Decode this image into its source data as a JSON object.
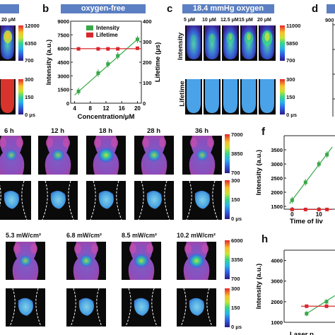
{
  "panels": {
    "a": {
      "conc_label": "20 μM",
      "cbar_int": [
        "12000",
        "6350",
        "700"
      ],
      "cbar_life": [
        "300",
        "150",
        "0 μs"
      ]
    },
    "b": {
      "label": "b",
      "title": "oxygen-free"
    },
    "c": {
      "label": "c",
      "title": "18.4 mmHg oxygen",
      "concentrations": [
        "5 μM",
        "10 μM",
        "12.5 μM",
        "15 μM",
        "20 μM"
      ],
      "row_labels": [
        "Intensity",
        "Lifetime"
      ],
      "cbar_int": [
        "11000",
        "5850",
        "700"
      ],
      "cbar_life": [
        "300",
        "150",
        "0 μs"
      ]
    },
    "d": {
      "label": "d",
      "partial_tick": "900"
    },
    "e": {
      "times": [
        "6 h",
        "12 h",
        "18 h",
        "28 h",
        "36 h"
      ],
      "cbar_int": [
        "7000",
        "3850",
        "700"
      ],
      "cbar_life": [
        "300",
        "150",
        "0 μs"
      ]
    },
    "f": {
      "label": "f"
    },
    "g": {
      "powers": [
        "5.3 mW/cm²",
        "6.8 mW/cm²",
        "8.5 mW/cm²",
        "10.2 mW/cm²"
      ],
      "cbar_int": [
        "6000",
        "3350",
        "700"
      ],
      "cbar_life": [
        "300",
        "150",
        "0 μs"
      ]
    },
    "h": {
      "label": "h"
    }
  },
  "chart_data": [
    {
      "panel": "b",
      "type": "line",
      "title": "oxygen-free",
      "xlabel": "Concentration/μM",
      "ylabel": "Intensity (a.u.)",
      "y2label": "Lifetime (μs)",
      "xlim": [
        3,
        21
      ],
      "ylim": [
        0,
        9000
      ],
      "y2lim": [
        0,
        400
      ],
      "xticks": [
        4,
        8,
        12,
        16,
        20
      ],
      "yticks": [
        0,
        1500,
        3000,
        4500,
        6000,
        7500,
        9000
      ],
      "y2ticks": [
        0,
        100,
        200,
        300,
        400
      ],
      "legend": [
        "Intensity",
        "Lifetime"
      ],
      "legend_position": "top-left",
      "series": [
        {
          "name": "Intensity",
          "color": "#3aa84a",
          "axis": "left",
          "x": [
            5,
            10,
            12.5,
            15,
            20
          ],
          "y": [
            1300,
            3300,
            4300,
            5200,
            7000
          ]
        },
        {
          "name": "Lifetime",
          "color": "#d8282c",
          "axis": "right",
          "x": [
            5,
            10,
            12.5,
            15,
            20
          ],
          "y": [
            265,
            265,
            265,
            265,
            268
          ]
        }
      ]
    },
    {
      "panel": "f",
      "type": "line",
      "xlabel": "Time of liv",
      "ylabel": "Intensity (a.u.)",
      "xlim": [
        -3,
        16
      ],
      "ylim": [
        1400,
        4000
      ],
      "xticks": [
        0,
        10
      ],
      "yticks": [
        1500,
        2000,
        2500,
        3000,
        3500
      ],
      "series": [
        {
          "name": "",
          "color": "#3aa84a",
          "x": [
            0,
            5,
            10,
            13
          ],
          "y": [
            1720,
            2350,
            3000,
            3330
          ]
        },
        {
          "name": "",
          "color": "#d8282c",
          "x": [
            0,
            5,
            10,
            13
          ],
          "y": [
            1390,
            1390,
            1390,
            1390
          ]
        }
      ]
    },
    {
      "panel": "h",
      "type": "line",
      "xlabel": "Laser p",
      "ylabel": "Intensity (a.u.)",
      "xlim": [
        0,
        12
      ],
      "ylim": [
        1000,
        4500
      ],
      "xticks": [],
      "yticks": [
        1000,
        2000,
        3000,
        4000
      ],
      "series": [
        {
          "name": "",
          "color": "#3aa84a",
          "x": [
            5.3,
            10
          ],
          "y": [
            1420,
            2000
          ]
        },
        {
          "name": "",
          "color": "#d8282c",
          "x": [
            5.3,
            10
          ],
          "y": [
            1780,
            1780
          ]
        }
      ]
    }
  ]
}
